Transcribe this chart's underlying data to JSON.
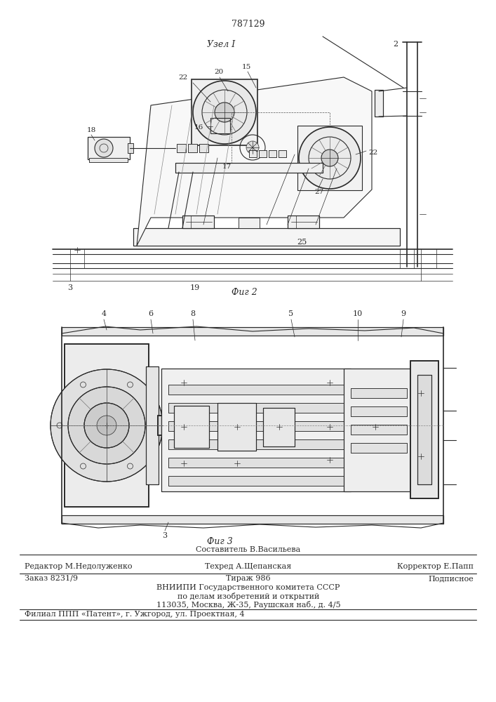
{
  "patent_number": "787129",
  "bg_color": "#ffffff",
  "lc": "#2a2a2a",
  "fig_width": 7.07,
  "fig_height": 10.0,
  "dpi": 100,
  "footer": {
    "editor": "Редактор М.Недолуженко",
    "composer": "Составитель В.Васильева",
    "techred": "Техред А.Щепанская",
    "corrector": "Корректор Е.Папп",
    "order": "Заказ 8231/9",
    "tirazh": "Тираж 986",
    "podpisnoe": "Подписное",
    "vniip1": "ВНИИПИ Государственного комитета СССР",
    "vniip2": "по делам изобретений и открытий",
    "vniip3": "113035, Москва, Ж-35, Раушская наб., д. 4/5",
    "filial": "Филиал ППП «Патент», г. Ужгород, ул. Проектная, 4"
  },
  "fig2_caption": "Фиг 2",
  "fig3_caption": "Фиг 3",
  "uzell_label": "Узел I"
}
